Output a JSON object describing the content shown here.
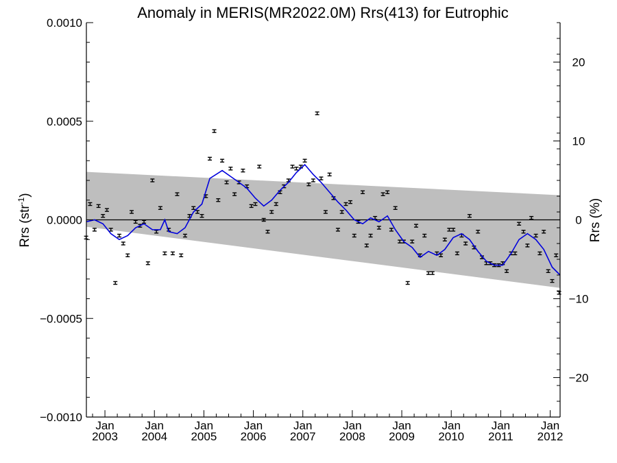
{
  "chart_data": {
    "type": "scatter",
    "title": "Anomaly in MERIS(MR2022.0M) Rrs(413) for Eutrophic",
    "ylabel_text": "Rrs (str",
    "ylabel_sup": "-1",
    "ylabel_close": ")",
    "y2label": "Rrs (%)",
    "xlim": [
      2002.625,
      2012.2
    ],
    "ylim": [
      -0.001,
      0.001
    ],
    "y2lim": [
      -25,
      25
    ],
    "yticks": [
      {
        "value": 0.001,
        "label": "0.0010"
      },
      {
        "value": 0.0005,
        "label": "0.0005"
      },
      {
        "value": 0.0,
        "label": "0.0000"
      },
      {
        "value": -0.0005,
        "label": "−0.0005"
      },
      {
        "value": -0.001,
        "label": "−0.0010"
      }
    ],
    "y2ticks": [
      {
        "value": 20,
        "label": "20"
      },
      {
        "value": 10,
        "label": "10"
      },
      {
        "value": 0,
        "label": "0"
      },
      {
        "value": -10,
        "label": "−10"
      },
      {
        "value": -20,
        "label": "−20"
      }
    ],
    "xticks": [
      {
        "value": 2003.0,
        "month": "Jan",
        "year": "2003"
      },
      {
        "value": 2004.0,
        "month": "Jan",
        "year": "2004"
      },
      {
        "value": 2005.0,
        "month": "Jan",
        "year": "2005"
      },
      {
        "value": 2006.0,
        "month": "Jan",
        "year": "2006"
      },
      {
        "value": 2007.0,
        "month": "Jan",
        "year": "2007"
      },
      {
        "value": 2008.0,
        "month": "Jan",
        "year": "2008"
      },
      {
        "value": 2009.0,
        "month": "Jan",
        "year": "2009"
      },
      {
        "value": 2010.0,
        "month": "Jan",
        "year": "2010"
      },
      {
        "value": 2011.0,
        "month": "Jan",
        "year": "2011"
      },
      {
        "value": 2012.0,
        "month": "Jan",
        "year": "2012"
      }
    ],
    "reference_line": 0.0,
    "band": {
      "start": {
        "x": 2002.625,
        "upper": 0.000243,
        "lower": -3.5e-05
      },
      "end": {
        "x": 2012.2,
        "upper": 0.000125,
        "lower": -0.000345
      }
    },
    "series": [
      {
        "kind": "points_with_error_bars",
        "error": 7e-06,
        "points": [
          [
            2002.62,
            -9e-05
          ],
          [
            2002.7,
            8e-05
          ],
          [
            2002.79,
            -5e-05
          ],
          [
            2002.87,
            7e-05
          ],
          [
            2002.96,
            2e-05
          ],
          [
            2003.04,
            5e-05
          ],
          [
            2003.12,
            -5e-05
          ],
          [
            2003.21,
            -0.00032
          ],
          [
            2003.29,
            -8e-05
          ],
          [
            2003.37,
            -0.00012
          ],
          [
            2003.46,
            -0.00018
          ],
          [
            2003.54,
            4e-05
          ],
          [
            2003.62,
            -1e-05
          ],
          [
            2003.71,
            -3e-05
          ],
          [
            2003.79,
            -1e-05
          ],
          [
            2003.87,
            -0.00022
          ],
          [
            2003.96,
            0.0002
          ],
          [
            2004.04,
            -6e-05
          ],
          [
            2004.12,
            6e-05
          ],
          [
            2004.21,
            -0.00017
          ],
          [
            2004.29,
            -5e-05
          ],
          [
            2004.37,
            -0.00017
          ],
          [
            2004.46,
            0.00013
          ],
          [
            2004.54,
            -0.00018
          ],
          [
            2004.62,
            -8e-05
          ],
          [
            2004.71,
            2e-05
          ],
          [
            2004.79,
            6e-05
          ],
          [
            2004.87,
            4e-05
          ],
          [
            2004.96,
            2e-05
          ],
          [
            2005.04,
            0.00012
          ],
          [
            2005.12,
            0.00031
          ],
          [
            2005.21,
            0.00045
          ],
          [
            2005.29,
            0.0001
          ],
          [
            2005.37,
            0.0003
          ],
          [
            2005.46,
            0.00019
          ],
          [
            2005.54,
            0.00026
          ],
          [
            2005.62,
            0.00013
          ],
          [
            2005.71,
            0.00019
          ],
          [
            2005.79,
            0.00025
          ],
          [
            2005.87,
            0.00017
          ],
          [
            2005.96,
            7e-05
          ],
          [
            2006.04,
            8e-05
          ],
          [
            2006.12,
            0.00027
          ],
          [
            2006.21,
            0.0
          ],
          [
            2006.29,
            -6e-05
          ],
          [
            2006.37,
            4e-05
          ],
          [
            2006.46,
            8e-05
          ],
          [
            2006.54,
            0.00014
          ],
          [
            2006.62,
            0.00017
          ],
          [
            2006.71,
            0.0002
          ],
          [
            2006.79,
            0.00027
          ],
          [
            2006.87,
            0.00026
          ],
          [
            2006.96,
            0.00027
          ],
          [
            2007.04,
            0.0003
          ],
          [
            2007.12,
            0.00018
          ],
          [
            2007.21,
            0.0002
          ],
          [
            2007.29,
            0.00054
          ],
          [
            2007.37,
            0.00021
          ],
          [
            2007.46,
            4e-05
          ],
          [
            2007.54,
            0.00023
          ],
          [
            2007.62,
            0.00011
          ],
          [
            2007.71,
            -5e-05
          ],
          [
            2007.79,
            4e-05
          ],
          [
            2007.87,
            8e-05
          ],
          [
            2007.96,
            9e-05
          ],
          [
            2008.04,
            -8e-05
          ],
          [
            2008.12,
            -1e-05
          ],
          [
            2008.21,
            0.00014
          ],
          [
            2008.29,
            -0.00013
          ],
          [
            2008.37,
            -8e-05
          ],
          [
            2008.46,
            1e-05
          ],
          [
            2008.54,
            -4e-05
          ],
          [
            2008.62,
            0.00013
          ],
          [
            2008.71,
            0.00014
          ],
          [
            2008.79,
            -5e-05
          ],
          [
            2008.87,
            6e-05
          ],
          [
            2008.96,
            -0.00011
          ],
          [
            2009.04,
            -0.00011
          ],
          [
            2009.12,
            -0.00032
          ],
          [
            2009.21,
            -0.00011
          ],
          [
            2009.29,
            -3e-05
          ],
          [
            2009.37,
            -0.00018
          ],
          [
            2009.46,
            -8e-05
          ],
          [
            2009.54,
            -0.00027
          ],
          [
            2009.62,
            -0.00027
          ],
          [
            2009.71,
            -0.00017
          ],
          [
            2009.79,
            -0.00018
          ],
          [
            2009.87,
            -0.0001
          ],
          [
            2009.96,
            -5e-05
          ],
          [
            2010.04,
            -5e-05
          ],
          [
            2010.12,
            -0.00017
          ],
          [
            2010.21,
            -8e-05
          ],
          [
            2010.29,
            -0.00012
          ],
          [
            2010.37,
            2e-05
          ],
          [
            2010.46,
            -0.00014
          ],
          [
            2010.54,
            -6e-05
          ],
          [
            2010.62,
            -0.00019
          ],
          [
            2010.71,
            -0.00022
          ],
          [
            2010.79,
            -0.00022
          ],
          [
            2010.87,
            -0.00023
          ],
          [
            2010.96,
            -0.00023
          ],
          [
            2011.04,
            -0.00022
          ],
          [
            2011.12,
            -0.00026
          ],
          [
            2011.21,
            -0.00017
          ],
          [
            2011.29,
            -0.00017
          ],
          [
            2011.37,
            -2e-05
          ],
          [
            2011.46,
            -6e-05
          ],
          [
            2011.54,
            -0.00013
          ],
          [
            2011.62,
            1e-05
          ],
          [
            2011.71,
            -8e-05
          ],
          [
            2011.79,
            -0.00017
          ],
          [
            2011.87,
            -6e-05
          ],
          [
            2011.96,
            -0.00026
          ],
          [
            2012.04,
            -0.00031
          ],
          [
            2012.12,
            -0.00018
          ],
          [
            2012.18,
            -0.00037
          ]
        ]
      },
      {
        "kind": "smoothed_line",
        "color": "#0000dd",
        "points": [
          [
            2002.62,
            -1e-05
          ],
          [
            2002.79,
            0.0
          ],
          [
            2002.96,
            -2e-05
          ],
          [
            2003.12,
            -7e-05
          ],
          [
            2003.29,
            -0.0001
          ],
          [
            2003.46,
            -8e-05
          ],
          [
            2003.62,
            -4e-05
          ],
          [
            2003.79,
            -2e-05
          ],
          [
            2003.96,
            -5e-05
          ],
          [
            2004.12,
            -5e-05
          ],
          [
            2004.21,
            0.0
          ],
          [
            2004.29,
            -6e-05
          ],
          [
            2004.46,
            -7e-05
          ],
          [
            2004.62,
            -4e-05
          ],
          [
            2004.79,
            4e-05
          ],
          [
            2004.96,
            8e-05
          ],
          [
            2005.12,
            0.00021
          ],
          [
            2005.37,
            0.00025
          ],
          [
            2005.54,
            0.00022
          ],
          [
            2005.71,
            0.00019
          ],
          [
            2005.87,
            0.00016
          ],
          [
            2006.04,
            0.00011
          ],
          [
            2006.21,
            7e-05
          ],
          [
            2006.37,
            0.0001
          ],
          [
            2006.54,
            0.00015
          ],
          [
            2006.71,
            0.00019
          ],
          [
            2006.87,
            0.00024
          ],
          [
            2007.04,
            0.00028
          ],
          [
            2007.21,
            0.00023
          ],
          [
            2007.37,
            0.00019
          ],
          [
            2007.54,
            0.00014
          ],
          [
            2007.71,
            9e-05
          ],
          [
            2007.87,
            5e-05
          ],
          [
            2008.04,
            0.0
          ],
          [
            2008.21,
            -2e-05
          ],
          [
            2008.37,
            1e-05
          ],
          [
            2008.54,
            -1e-05
          ],
          [
            2008.71,
            2e-05
          ],
          [
            2008.87,
            -5e-05
          ],
          [
            2009.04,
            -0.00011
          ],
          [
            2009.21,
            -0.00014
          ],
          [
            2009.37,
            -0.00019
          ],
          [
            2009.54,
            -0.00016
          ],
          [
            2009.71,
            -0.00018
          ],
          [
            2009.87,
            -0.00015
          ],
          [
            2010.04,
            -9e-05
          ],
          [
            2010.21,
            -7e-05
          ],
          [
            2010.37,
            -0.0001
          ],
          [
            2010.54,
            -0.00016
          ],
          [
            2010.71,
            -0.00021
          ],
          [
            2010.87,
            -0.00023
          ],
          [
            2011.04,
            -0.00023
          ],
          [
            2011.21,
            -0.00017
          ],
          [
            2011.37,
            -0.0001
          ],
          [
            2011.54,
            -7e-05
          ],
          [
            2011.71,
            -0.0001
          ],
          [
            2011.87,
            -0.00015
          ],
          [
            2012.04,
            -0.00024
          ],
          [
            2012.2,
            -0.00028
          ]
        ]
      }
    ]
  }
}
